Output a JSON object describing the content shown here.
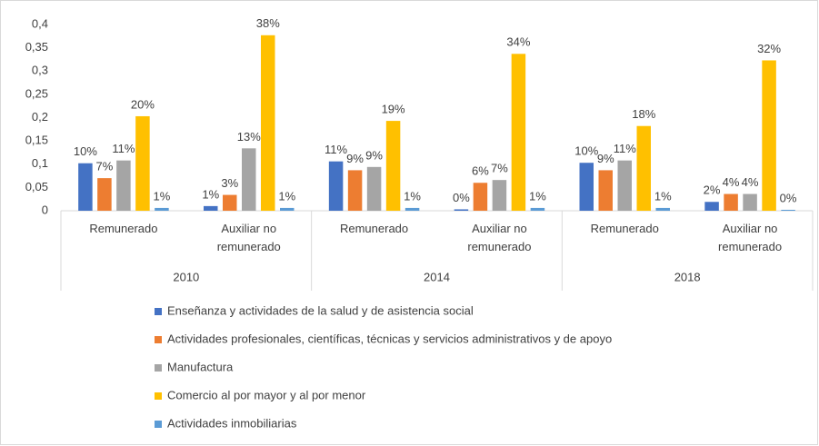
{
  "chart_data": {
    "type": "bar",
    "groups": [
      {
        "label": "2010",
        "categories": [
          "Remunerado",
          "Auxiliar no remunerado"
        ]
      },
      {
        "label": "2014",
        "categories": [
          "Remunerado",
          "Auxiliar no remunerado"
        ]
      },
      {
        "label": "2018",
        "categories": [
          "Remunerado",
          "Auxiliar no remunerado"
        ]
      }
    ],
    "series": [
      {
        "name": "Enseñanza y actividades de la salud y de asistencia social",
        "color": "#4472c4",
        "values": [
          0.102,
          0.01,
          0.106,
          0.003,
          0.103,
          0.019
        ],
        "value_labels": [
          "10%",
          "1%",
          "11%",
          "0%",
          "10%",
          "2%"
        ]
      },
      {
        "name": "Actividades profesionales, científicas, técnicas y servicios administrativos y de apoyo",
        "color": "#ed7d31",
        "values": [
          0.07,
          0.034,
          0.087,
          0.06,
          0.087,
          0.036
        ],
        "value_labels": [
          "7%",
          "3%",
          "9%",
          "6%",
          "9%",
          "4%"
        ]
      },
      {
        "name": "Manufactura",
        "color": "#a5a5a5",
        "values": [
          0.108,
          0.134,
          0.094,
          0.066,
          0.108,
          0.036
        ],
        "value_labels": [
          "11%",
          "13%",
          "9%",
          "7%",
          "11%",
          "4%"
        ]
      },
      {
        "name": "Comercio al por mayor y al por menor",
        "color": "#ffc000",
        "values": [
          0.203,
          0.377,
          0.193,
          0.337,
          0.182,
          0.323
        ],
        "value_labels": [
          "20%",
          "38%",
          "19%",
          "34%",
          "18%",
          "32%"
        ]
      },
      {
        "name": "Actividades inmobiliarias",
        "color": "#5b9bd5",
        "values": [
          0.006,
          0.006,
          0.006,
          0.006,
          0.006,
          0.002
        ],
        "value_labels": [
          "1%",
          "1%",
          "1%",
          "1%",
          "1%",
          "0%"
        ]
      }
    ],
    "ylim": [
      0,
      0.4
    ],
    "yticks": [
      0,
      {
        "value": 0.05,
        "label": "0,05"
      },
      {
        "value": 0.1,
        "label": "0,1"
      },
      {
        "value": 0.15,
        "label": "0,15"
      },
      {
        "value": 0.2,
        "label": "0,2"
      },
      {
        "value": 0.25,
        "label": "0,25"
      },
      {
        "value": 0.3,
        "label": "0,3"
      },
      {
        "value": 0.35,
        "label": "0,35"
      },
      {
        "value": 0.4,
        "label": "0,4"
      }
    ],
    "grid": false,
    "legend": "bottom"
  }
}
